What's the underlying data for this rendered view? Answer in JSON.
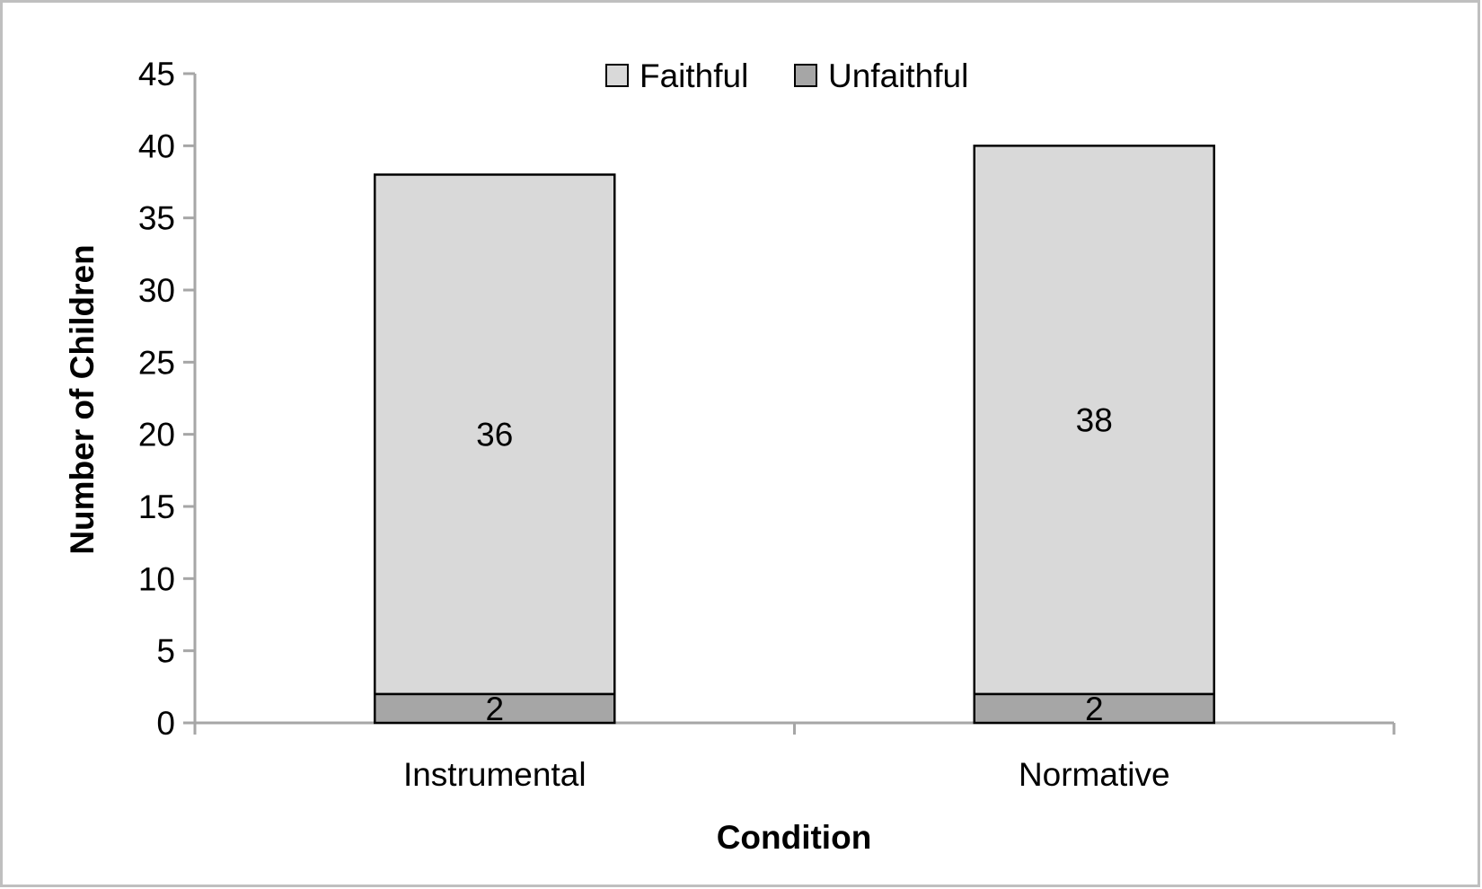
{
  "chart_data": {
    "type": "bar",
    "stacked": true,
    "categories": [
      "Instrumental",
      "Normative"
    ],
    "series": [
      {
        "name": "Unfaithful",
        "values": [
          2,
          2
        ],
        "color": "#a6a6a6"
      },
      {
        "name": "Faithful",
        "values": [
          36,
          38
        ],
        "color": "#d9d9d9"
      }
    ],
    "legend": {
      "position": "top-center",
      "entries": [
        "Faithful",
        "Unfaithful"
      ]
    },
    "title": "",
    "xlabel": "Condition",
    "ylabel": "Number of Children",
    "ylim": [
      0,
      45
    ],
    "yticks": [
      0,
      5,
      10,
      15,
      20,
      25,
      30,
      35,
      40,
      45
    ],
    "grid": false,
    "frame_color": "#bfbfbf",
    "axis_color": "#a6a6a6"
  }
}
